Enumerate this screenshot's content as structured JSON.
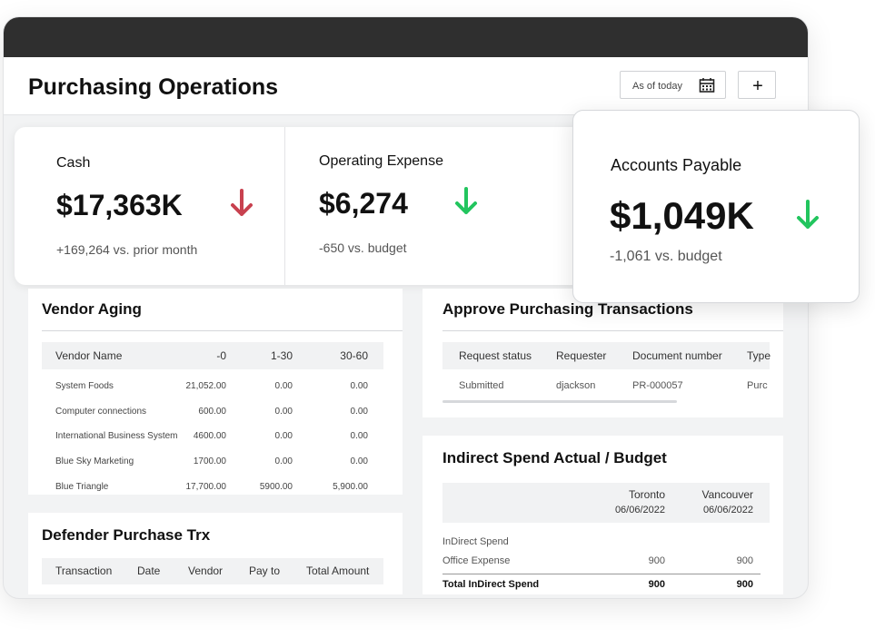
{
  "header": {
    "title": "Purchasing Operations",
    "date_filter": "As of today",
    "add_button": "+"
  },
  "kpis": [
    {
      "label": "Cash",
      "value": "$17,363K",
      "delta": "+169,264 vs. prior month",
      "arrow_color": "#c8414f"
    },
    {
      "label": "Operating Expense",
      "value": "$6,274",
      "delta": "-650 vs. budget",
      "arrow_color": "#22c55e"
    },
    {
      "label": "Accounts Payable",
      "value": "$1,049K",
      "delta": "-1,061 vs. budget",
      "arrow_color": "#22c55e"
    }
  ],
  "vendor_aging": {
    "title": "Vendor Aging",
    "columns": [
      "Vendor Name",
      "-0",
      "1-30",
      "30-60"
    ],
    "rows": [
      [
        "System Foods",
        "21,052.00",
        "0.00",
        "0.00"
      ],
      [
        "Computer connections",
        "600.00",
        "0.00",
        "0.00"
      ],
      [
        "International Business System",
        "4600.00",
        "0.00",
        "0.00"
      ],
      [
        "Blue Sky Marketing",
        "1700.00",
        "0.00",
        "0.00"
      ],
      [
        "Blue Triangle",
        "17,700.00",
        "5900.00",
        "5,900.00"
      ]
    ]
  },
  "approve_transactions": {
    "title": "Approve Purchasing Transactions",
    "columns": [
      "Request status",
      "Requester",
      "Document number",
      "Type"
    ],
    "rows": [
      [
        "Submitted",
        "djackson",
        "PR-000057",
        "Purc"
      ]
    ]
  },
  "defender_purchase": {
    "title": "Defender Purchase Trx",
    "columns": [
      "Transaction",
      "Date",
      "Vendor",
      "Pay to",
      "Total Amount"
    ]
  },
  "indirect_spend": {
    "title": "Indirect Spend Actual / Budget",
    "columns": [
      {
        "name": "Toronto",
        "date": "06/06/2022"
      },
      {
        "name": "Vancouver",
        "date": "06/06/2022"
      }
    ],
    "rows": [
      [
        "InDirect Spend"
      ],
      [
        "Office Expense",
        "900",
        "900"
      ],
      [
        "Total InDirect Spend",
        "900",
        "900"
      ]
    ]
  }
}
